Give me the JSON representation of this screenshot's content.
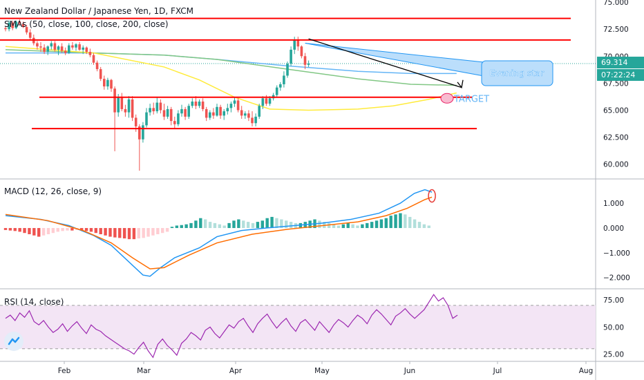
{
  "chart_data": [
    {
      "type": "candlestick",
      "title": "New Zealand Dollar / Japanese Yen, 1D, FXCM",
      "indicator_label": "SMAs (50, close, 100, close, 200, close)",
      "x_labels": [
        "Feb",
        "Mar",
        "Apr",
        "May",
        "Jun",
        "Jul",
        "Aug"
      ],
      "y_ticks": [
        "75.000",
        "72.500",
        "70.000",
        "67.500",
        "65.000",
        "62.500",
        "60.000"
      ],
      "ylim": [
        58.7,
        75.2
      ],
      "last_price": "69.314",
      "countdown": "07:22:24",
      "colors": {
        "up": "#26a69a",
        "down": "#ef5350",
        "level_line": "#ff0000",
        "sma50": "#ffeb3b",
        "sma100": "#81c784",
        "sma200": "#64b5f6"
      },
      "candles": [
        [
          72.6,
          72.8,
          72.3,
          72.5
        ],
        [
          72.5,
          73.3,
          72.3,
          73.1
        ],
        [
          73.1,
          73.3,
          72.4,
          72.6
        ],
        [
          72.6,
          73.3,
          72.5,
          73.2
        ],
        [
          73.2,
          73.4,
          72.9,
          73.0
        ],
        [
          73.0,
          73.2,
          72.6,
          72.7
        ],
        [
          72.7,
          72.9,
          72.0,
          72.2
        ],
        [
          72.2,
          72.5,
          71.5,
          71.7
        ],
        [
          71.7,
          72.0,
          71.0,
          71.2
        ],
        [
          71.2,
          71.4,
          70.6,
          70.9
        ],
        [
          70.9,
          71.3,
          70.4,
          70.8
        ],
        [
          70.8,
          71.1,
          70.2,
          70.4
        ],
        [
          70.4,
          71.0,
          70.1,
          70.9
        ],
        [
          70.9,
          71.4,
          70.6,
          71.2
        ],
        [
          71.2,
          71.4,
          70.4,
          70.6
        ],
        [
          70.6,
          71.0,
          70.1,
          70.9
        ],
        [
          70.9,
          71.2,
          70.3,
          70.5
        ],
        [
          70.5,
          70.8,
          70.1,
          70.3
        ],
        [
          70.3,
          71.2,
          70.2,
          71.0
        ],
        [
          71.0,
          71.3,
          70.6,
          70.8
        ],
        [
          70.8,
          71.2,
          70.5,
          71.1
        ],
        [
          71.1,
          71.3,
          70.5,
          70.6
        ],
        [
          70.6,
          71.0,
          70.2,
          70.8
        ],
        [
          70.8,
          70.9,
          70.2,
          70.4
        ],
        [
          70.4,
          70.7,
          69.9,
          70.1
        ],
        [
          70.1,
          70.3,
          69.2,
          69.4
        ],
        [
          69.4,
          69.6,
          68.6,
          68.8
        ],
        [
          68.8,
          69.0,
          67.7,
          67.9
        ],
        [
          67.9,
          68.2,
          66.9,
          67.2
        ],
        [
          67.2,
          68.0,
          66.9,
          67.8
        ],
        [
          67.8,
          67.9,
          66.7,
          67.0
        ],
        [
          67.0,
          67.2,
          61.2,
          64.8
        ],
        [
          64.8,
          66.5,
          64.4,
          66.2
        ],
        [
          66.2,
          66.6,
          64.9,
          65.1
        ],
        [
          65.1,
          65.5,
          64.4,
          64.8
        ],
        [
          64.8,
          66.3,
          64.3,
          66.0
        ],
        [
          66.0,
          66.3,
          64.0,
          64.3
        ],
        [
          64.3,
          64.6,
          63.0,
          63.5
        ],
        [
          63.5,
          63.7,
          59.4,
          62.3
        ],
        [
          62.3,
          63.9,
          62.0,
          63.6
        ],
        [
          63.6,
          65.2,
          63.4,
          64.8
        ],
        [
          64.8,
          65.6,
          64.5,
          65.2
        ],
        [
          65.2,
          65.7,
          64.6,
          64.9
        ],
        [
          64.9,
          66.2,
          64.7,
          65.7
        ],
        [
          65.7,
          66.0,
          64.7,
          65.0
        ],
        [
          65.0,
          65.6,
          64.1,
          64.4
        ],
        [
          64.4,
          65.4,
          64.2,
          65.1
        ],
        [
          65.1,
          65.3,
          63.6,
          64.0
        ],
        [
          64.0,
          64.4,
          63.3,
          63.7
        ],
        [
          63.7,
          65.0,
          63.5,
          64.7
        ],
        [
          64.7,
          65.5,
          64.4,
          65.1
        ],
        [
          65.1,
          65.3,
          64.1,
          64.4
        ],
        [
          64.4,
          65.6,
          64.2,
          65.4
        ],
        [
          65.4,
          66.1,
          65.2,
          65.8
        ],
        [
          65.8,
          66.3,
          65.1,
          65.4
        ],
        [
          65.4,
          66.0,
          65.2,
          65.8
        ],
        [
          65.8,
          66.1,
          64.9,
          65.1
        ],
        [
          65.1,
          65.3,
          64.0,
          64.3
        ],
        [
          64.3,
          65.0,
          64.1,
          64.8
        ],
        [
          64.8,
          65.2,
          64.2,
          64.5
        ],
        [
          64.5,
          65.6,
          64.4,
          65.3
        ],
        [
          65.3,
          65.5,
          64.2,
          64.5
        ],
        [
          64.5,
          65.1,
          64.1,
          64.9
        ],
        [
          64.9,
          65.6,
          64.6,
          65.2
        ],
        [
          65.2,
          65.8,
          64.8,
          65.6
        ],
        [
          65.6,
          66.2,
          65.3,
          65.9
        ],
        [
          65.9,
          66.1,
          64.8,
          65.0
        ],
        [
          65.0,
          65.4,
          64.2,
          64.5
        ],
        [
          64.5,
          64.9,
          64.2,
          64.7
        ],
        [
          64.7,
          65.0,
          64.0,
          64.3
        ],
        [
          64.3,
          64.9,
          63.5,
          63.8
        ],
        [
          63.8,
          64.7,
          63.5,
          64.4
        ],
        [
          64.4,
          65.6,
          64.2,
          65.4
        ],
        [
          65.4,
          66.3,
          65.1,
          66.1
        ],
        [
          66.1,
          66.4,
          65.4,
          65.6
        ],
        [
          65.6,
          66.3,
          65.4,
          66.1
        ],
        [
          66.1,
          66.6,
          65.9,
          66.4
        ],
        [
          66.4,
          67.3,
          66.2,
          67.1
        ],
        [
          67.1,
          67.6,
          66.8,
          67.4
        ],
        [
          67.4,
          68.6,
          67.1,
          68.2
        ],
        [
          68.2,
          69.5,
          68.0,
          69.3
        ],
        [
          69.3,
          70.9,
          69.1,
          70.6
        ],
        [
          70.6,
          71.8,
          70.2,
          71.5
        ],
        [
          71.5,
          71.8,
          70.5,
          70.9
        ],
        [
          70.9,
          71.0,
          69.8,
          70.0
        ],
        [
          70.0,
          70.3,
          68.8,
          69.2
        ],
        [
          69.2,
          69.6,
          69.0,
          69.3
        ]
      ],
      "sma50": [
        [
          0,
          70.9
        ],
        [
          25,
          70.3
        ],
        [
          45,
          69.0
        ],
        [
          55,
          67.8
        ],
        [
          65,
          66.2
        ],
        [
          75,
          65.1
        ],
        [
          86,
          65.0
        ],
        [
          100,
          65.1
        ],
        [
          110,
          65.4
        ],
        [
          120,
          66.0
        ],
        [
          128,
          66.6
        ]
      ],
      "sma100": [
        [
          0,
          70.6
        ],
        [
          25,
          70.3
        ],
        [
          45,
          70.1
        ],
        [
          60,
          69.7
        ],
        [
          80,
          68.8
        ],
        [
          100,
          67.9
        ],
        [
          115,
          67.4
        ],
        [
          128,
          67.3
        ]
      ],
      "sma200": [
        [
          0,
          70.3
        ],
        [
          25,
          70.3
        ],
        [
          45,
          70.1
        ],
        [
          60,
          69.7
        ],
        [
          80,
          69.1
        ],
        [
          100,
          68.6
        ],
        [
          115,
          68.4
        ],
        [
          128,
          68.4
        ]
      ],
      "level_lines": [
        73.5,
        71.5,
        66.2,
        63.3
      ],
      "annotation": "Evening  star",
      "target_label": "TARGET"
    },
    {
      "type": "macd",
      "title": "MACD (12, 26, close, 9)",
      "y_ticks": [
        "1.000",
        "0.000",
        "−1.000",
        "−2.000"
      ],
      "ylim": [
        -2.4,
        1.9
      ],
      "colors": {
        "macd": "#2196f3",
        "signal": "#ff6d00",
        "hist_up_strong": "#26a69a",
        "hist_up_weak": "#b2dfdb",
        "hist_down_strong": "#ef5350",
        "hist_down_weak": "#ffcdd2"
      },
      "macd": [
        [
          0,
          0.5
        ],
        [
          10,
          0.35
        ],
        [
          18,
          0.1
        ],
        [
          25,
          -0.3
        ],
        [
          30,
          -0.7
        ],
        [
          33,
          -1.1
        ],
        [
          36,
          -1.5
        ],
        [
          39,
          -1.9
        ],
        [
          41,
          -1.95
        ],
        [
          44,
          -1.6
        ],
        [
          48,
          -1.2
        ],
        [
          55,
          -0.8
        ],
        [
          60,
          -0.35
        ],
        [
          67,
          -0.1
        ],
        [
          74,
          0.0
        ],
        [
          82,
          0.1
        ],
        [
          90,
          0.2
        ],
        [
          98,
          0.35
        ],
        [
          106,
          0.6
        ],
        [
          112,
          1.0
        ],
        [
          116,
          1.4
        ],
        [
          119,
          1.55
        ],
        [
          121,
          1.45
        ]
      ],
      "signal": [
        [
          0,
          0.55
        ],
        [
          12,
          0.3
        ],
        [
          22,
          -0.1
        ],
        [
          30,
          -0.6
        ],
        [
          36,
          -1.2
        ],
        [
          41,
          -1.65
        ],
        [
          45,
          -1.6
        ],
        [
          52,
          -1.1
        ],
        [
          60,
          -0.6
        ],
        [
          70,
          -0.25
        ],
        [
          80,
          -0.05
        ],
        [
          90,
          0.1
        ],
        [
          100,
          0.25
        ],
        [
          108,
          0.5
        ],
        [
          114,
          0.8
        ],
        [
          119,
          1.15
        ],
        [
          121,
          1.25
        ]
      ],
      "histogram": [
        -0.08,
        -0.1,
        -0.12,
        -0.15,
        -0.2,
        -0.25,
        -0.3,
        -0.35,
        -0.3,
        -0.25,
        -0.2,
        -0.15,
        -0.12,
        -0.1,
        -0.1,
        -0.08,
        -0.1,
        -0.12,
        -0.15,
        -0.2,
        -0.25,
        -0.3,
        -0.35,
        -0.38,
        -0.4,
        -0.42,
        -0.45,
        -0.45,
        -0.42,
        -0.4,
        -0.35,
        -0.3,
        -0.25,
        -0.2,
        -0.15,
        0.05,
        0.1,
        0.12,
        0.15,
        0.2,
        0.3,
        0.4,
        0.35,
        0.25,
        0.2,
        0.15,
        0.1,
        0.2,
        0.3,
        0.35,
        0.3,
        0.25,
        0.2,
        0.25,
        0.3,
        0.4,
        0.45,
        0.4,
        0.35,
        0.3,
        0.25,
        0.2,
        0.2,
        0.25,
        0.3,
        0.35,
        0.3,
        0.25,
        0.2,
        0.15,
        0.1,
        0.15,
        0.2,
        0.15,
        0.1,
        0.15,
        0.2,
        0.25,
        0.3,
        0.35,
        0.4,
        0.5,
        0.55,
        0.6,
        0.55,
        0.45,
        0.35,
        0.25,
        0.15,
        0.1
      ]
    },
    {
      "type": "rsi",
      "title": "RSI (14, close)",
      "y_ticks": [
        "75.00",
        "50.00",
        "25.00"
      ],
      "ylim": [
        19,
        84
      ],
      "colors": {
        "rsi": "#9c27b0",
        "band": "#f3e5f5"
      },
      "band": [
        30,
        70
      ],
      "values": [
        58,
        61,
        56,
        63,
        59,
        65,
        55,
        52,
        56,
        50,
        45,
        48,
        53,
        46,
        51,
        55,
        49,
        44,
        52,
        48,
        46,
        42,
        39,
        36,
        33,
        30,
        28,
        25,
        31,
        36,
        28,
        22,
        34,
        39,
        33,
        29,
        24,
        35,
        39,
        45,
        42,
        38,
        47,
        50,
        44,
        40,
        46,
        52,
        49,
        55,
        58,
        51,
        45,
        53,
        58,
        62,
        55,
        49,
        54,
        58,
        51,
        46,
        54,
        57,
        52,
        47,
        55,
        50,
        45,
        52,
        57,
        54,
        50,
        56,
        61,
        58,
        53,
        61,
        66,
        62,
        57,
        52,
        60,
        63,
        67,
        62,
        58,
        62,
        66,
        73,
        80,
        74,
        77,
        70,
        58,
        61
      ]
    }
  ],
  "x_axis": {
    "labels": [
      "Feb",
      "Mar",
      "Apr",
      "May",
      "Jun",
      "Jul",
      "Aug"
    ]
  }
}
